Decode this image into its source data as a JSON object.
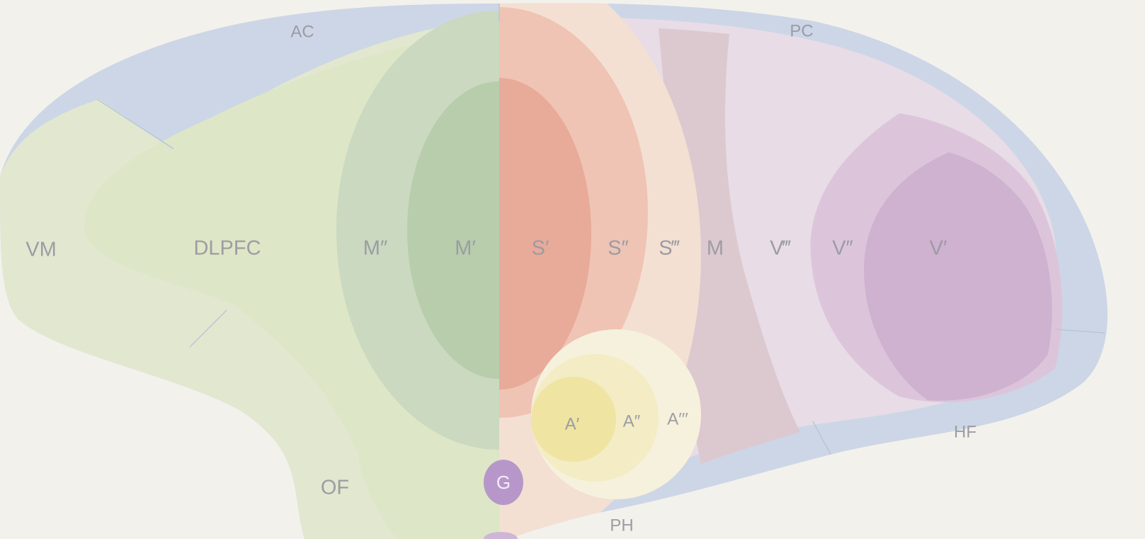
{
  "colors": {
    "background": "#f3f1ec",
    "outer_band": "#ccd6e6",
    "prefrontal_light": "#e1e8cf",
    "prefrontal_mid": "#dde6c6",
    "motor_outer": "#cad9bf",
    "motor_inner": "#b7cdab",
    "somato_outer": "#f3e0d2",
    "somato_mid": "#efc4b5",
    "somato_inner": "#e8aa99",
    "motor_strip": "#dcc9cf",
    "visual_outer": "#e8dce6",
    "visual_mid": "#dcc5db",
    "visual_inner": "#cfb2cf",
    "auditory_outer": "#f6f1dc",
    "auditory_mid": "#f3ecc4",
    "auditory_inner": "#efe4a2",
    "gustatory": "#b797c9",
    "label": "#9c9ca4"
  },
  "labels": {
    "ac": "AC",
    "pc": "PC",
    "vm": "VM",
    "dlpfc": "DLPFC",
    "m_double": "M″",
    "m_single": "M′",
    "s_single": "S′",
    "s_double": "S″",
    "s_triple": "S‴",
    "m": "M",
    "v_triple": "V‴",
    "v_double": "V″",
    "v_single": "V′",
    "a_single": "A′",
    "a_double": "A″",
    "a_triple": "A′′′",
    "of": "OF",
    "g": "G",
    "ph": "PH",
    "hf": "HF"
  }
}
